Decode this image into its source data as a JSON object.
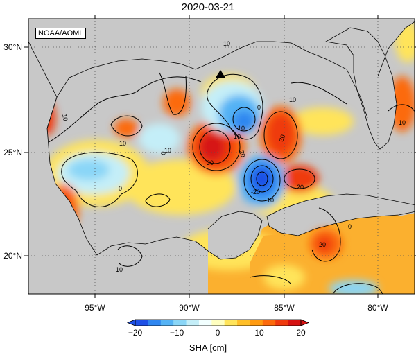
{
  "title": "2020-03-21",
  "credit": "NOAA/AOML",
  "lon_labels": [
    "95°W",
    "90°W",
    "85°W",
    "80°W"
  ],
  "lat_labels": [
    "30°N",
    "25°N",
    "20°N"
  ],
  "contour_labels": {
    "c1": "10",
    "c2": "10",
    "c3": "0",
    "c4": "10",
    "c5": "10",
    "c6": "10",
    "c7": "0",
    "c8": "30",
    "c9": "20",
    "c10": "-10",
    "c11": "30",
    "c12": "20",
    "c13": "-20",
    "c14": "-10",
    "c15": "0",
    "c16": "10",
    "c17": "10",
    "c18": "10",
    "c19": "0",
    "c20": "20"
  },
  "colorbar": {
    "ticks": [
      "−20",
      "−10",
      "0",
      "10",
      "20"
    ],
    "label": "SHA [cm]",
    "colors": [
      "#1e50e6",
      "#2f86f0",
      "#55b3f5",
      "#8ad6f7",
      "#c4eef8",
      "#f2ffff",
      "#ffffc0",
      "#ffe45a",
      "#ffbf28",
      "#ff9a10",
      "#fc6a0c",
      "#ef3a0e",
      "#d61212"
    ]
  },
  "map": {
    "projection": "equirectangular",
    "lon_range": [
      -98,
      -78.3
    ],
    "lat_range": [
      18.3,
      31.2
    ],
    "land_color": "#c8c8c8",
    "ocean_base_color": "#fbb02f",
    "marker": "buoy-triangle"
  }
}
